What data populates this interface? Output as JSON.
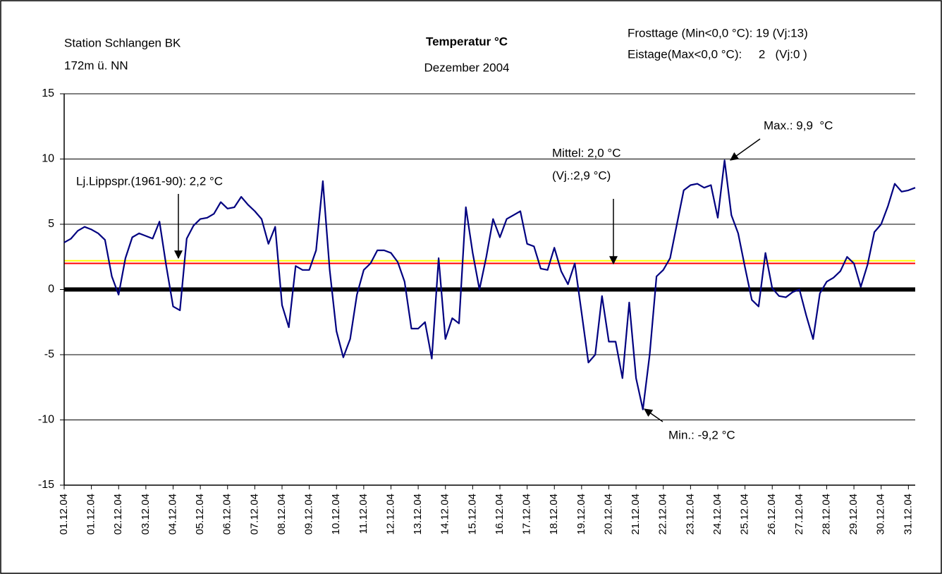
{
  "chart_data": {
    "type": "line",
    "title": "Temperatur °C",
    "subtitle": "Dezember 2004",
    "station": [
      "Station Schlangen BK",
      "172m ü. NN"
    ],
    "stats": [
      "Frosttage (Min<0,0 °C): 19 (Vj:13)",
      "Eistage(Max<0,0 °C):     2   (Vj:0 )"
    ],
    "annotations": [
      "Lj.Lippspr.(1961-90): 2,2 °C",
      "Mittel: 2,0 °C",
      "(Vj.:2,9 °C)",
      "Max.: 9,9  °C",
      "Min.: -9,2 °C"
    ],
    "xlim": [
      0,
      31.25
    ],
    "xticks": [
      {
        "value": 0,
        "label": "01.12.04"
      },
      {
        "value": 1,
        "label": "01.12.04"
      },
      {
        "value": 2,
        "label": "02.12.04"
      },
      {
        "value": 3,
        "label": "03.12.04"
      },
      {
        "value": 4,
        "label": "04.12.04"
      },
      {
        "value": 5,
        "label": "05.12.04"
      },
      {
        "value": 6,
        "label": "06.12.04"
      },
      {
        "value": 7,
        "label": "07.12.04"
      },
      {
        "value": 8,
        "label": "08.12.04"
      },
      {
        "value": 9,
        "label": "09.12.04"
      },
      {
        "value": 10,
        "label": "10.12.04"
      },
      {
        "value": 11,
        "label": "11.12.04"
      },
      {
        "value": 12,
        "label": "12.12.04"
      },
      {
        "value": 13,
        "label": "13.12.04"
      },
      {
        "value": 14,
        "label": "14.12.04"
      },
      {
        "value": 15,
        "label": "15.12.04"
      },
      {
        "value": 16,
        "label": "16.12.04"
      },
      {
        "value": 17,
        "label": "17.12.04"
      },
      {
        "value": 18,
        "label": "18.12.04"
      },
      {
        "value": 19,
        "label": "19.12.04"
      },
      {
        "value": 20,
        "label": "20.12.04"
      },
      {
        "value": 21,
        "label": "21.12.04"
      },
      {
        "value": 22,
        "label": "22.12.04"
      },
      {
        "value": 23,
        "label": "23.12.04"
      },
      {
        "value": 24,
        "label": "24.12.04"
      },
      {
        "value": 25,
        "label": "25.12.04"
      },
      {
        "value": 26,
        "label": "26.12.04"
      },
      {
        "value": 27,
        "label": "27.12.04"
      },
      {
        "value": 28,
        "label": "28.12.04"
      },
      {
        "value": 29,
        "label": "29.12.04"
      },
      {
        "value": 30,
        "label": "30.12.04"
      },
      {
        "value": 31,
        "label": "31.12.04"
      }
    ],
    "ylim": [
      -15,
      15
    ],
    "yticks": [
      -15,
      -10,
      -5,
      0,
      5,
      10,
      15
    ],
    "grid": true,
    "reference_lines": [
      {
        "value": 2.2,
        "color": "#ffff00"
      },
      {
        "value": 2.0,
        "color": "#ff0000"
      },
      {
        "value": 0,
        "color": "#000000"
      }
    ],
    "series": [
      {
        "color": "#000080",
        "x": [
          0,
          0.25,
          0.5,
          0.75,
          1,
          1.25,
          1.5,
          1.75,
          2,
          2.25,
          2.5,
          2.75,
          3,
          3.25,
          3.5,
          3.75,
          4,
          4.25,
          4.5,
          4.75,
          5,
          5.25,
          5.5,
          5.75,
          6,
          6.25,
          6.5,
          6.75,
          7,
          7.25,
          7.5,
          7.75,
          8,
          8.25,
          8.5,
          8.75,
          9,
          9.25,
          9.5,
          9.75,
          10,
          10.25,
          10.5,
          10.75,
          11,
          11.25,
          11.5,
          11.75,
          12,
          12.25,
          12.5,
          12.75,
          13,
          13.25,
          13.5,
          13.75,
          14,
          14.25,
          14.5,
          14.75,
          15,
          15.25,
          15.5,
          15.75,
          16,
          16.25,
          16.5,
          16.75,
          17,
          17.25,
          17.5,
          17.75,
          18,
          18.25,
          18.5,
          18.75,
          19,
          19.25,
          19.5,
          19.75,
          20,
          20.25,
          20.5,
          20.75,
          21,
          21.25,
          21.5,
          21.75,
          22,
          22.25,
          22.5,
          22.75,
          23,
          23.25,
          23.5,
          23.75,
          24,
          24.25,
          24.5,
          24.75,
          25,
          25.25,
          25.5,
          25.75,
          26,
          26.25,
          26.5,
          26.75,
          27,
          27.25,
          27.5,
          27.75,
          28,
          28.25,
          28.5,
          28.75,
          29,
          29.25,
          29.5,
          29.75,
          30,
          30.25,
          30.5,
          30.75,
          31,
          31.25
        ],
        "values": [
          3.6,
          3.9,
          4.5,
          4.8,
          4.6,
          4.3,
          3.8,
          1.0,
          -0.4,
          2.4,
          4.0,
          4.3,
          4.1,
          3.9,
          5.2,
          1.8,
          -1.3,
          -1.6,
          3.9,
          4.9,
          5.4,
          5.5,
          5.8,
          6.7,
          6.2,
          6.3,
          7.1,
          6.5,
          6.0,
          5.4,
          3.5,
          4.8,
          -1.2,
          -2.9,
          1.8,
          1.5,
          1.5,
          3.0,
          8.3,
          1.5,
          -3.2,
          -5.2,
          -3.8,
          -0.4,
          1.5,
          2.0,
          3.0,
          3.0,
          2.8,
          2.1,
          0.6,
          -3.0,
          -3.0,
          -2.5,
          -5.3,
          2.4,
          -3.8,
          -2.2,
          -2.6,
          6.3,
          2.8,
          0.0,
          2.5,
          5.4,
          4.0,
          5.4,
          5.7,
          6.0,
          3.5,
          3.3,
          1.6,
          1.5,
          3.2,
          1.4,
          0.4,
          2.0,
          -1.8,
          -5.6,
          -5.0,
          -0.5,
          -4.0,
          -4.0,
          -6.8,
          -1.0,
          -6.8,
          -9.2,
          -5.0,
          1.0,
          1.5,
          2.4,
          5.0,
          7.6,
          8.0,
          8.1,
          7.8,
          8.0,
          5.5,
          9.9,
          5.7,
          4.3,
          1.7,
          -0.8,
          -1.3,
          2.8,
          0.1,
          -0.5,
          -0.6,
          -0.2,
          0.0,
          -2.0,
          -3.8,
          -0.3,
          0.6,
          0.9,
          1.4,
          2.5,
          2.0,
          0.2,
          1.9,
          4.4,
          5.0,
          6.4,
          8.1,
          7.5,
          7.6,
          7.8
        ]
      }
    ]
  }
}
